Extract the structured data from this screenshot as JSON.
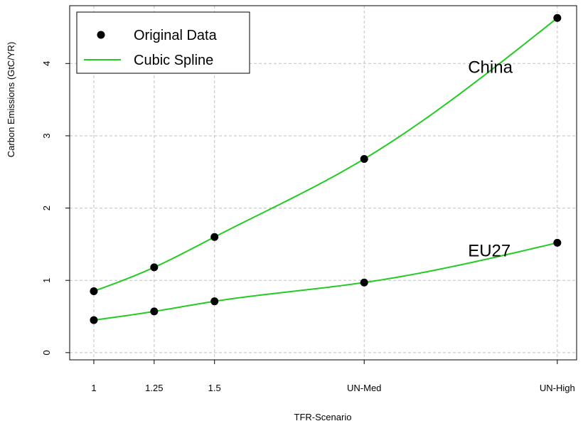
{
  "chart_data": {
    "type": "line",
    "xlabel": "TFR-Scenario",
    "ylabel": "Carbon Emissions (GtC/YR)",
    "x": [
      1,
      1.25,
      1.5,
      2.12,
      2.92
    ],
    "x_ticks": [
      {
        "value": 1,
        "label": "1"
      },
      {
        "value": 1.25,
        "label": "1.25"
      },
      {
        "value": 1.5,
        "label": "1.5"
      },
      {
        "value": 2.12,
        "label": "UN-Med"
      },
      {
        "value": 2.92,
        "label": "UN-High"
      }
    ],
    "y_ticks": [
      0,
      1,
      2,
      3,
      4
    ],
    "xlim": [
      0.9,
      3.0
    ],
    "ylim": [
      -0.1,
      4.8
    ],
    "grid": true,
    "legend_position": "top-left",
    "legend": {
      "points_label": "Original Data",
      "spline_label": "Cubic Spline",
      "spline_color": "#22cc22",
      "point_color": "#000000"
    },
    "series": [
      {
        "values": [
          0.85,
          1.18,
          1.6,
          2.68,
          4.63
        ],
        "annotation": "China"
      },
      {
        "values": [
          0.45,
          0.57,
          0.71,
          0.97,
          1.52
        ],
        "annotation": "EU27"
      }
    ],
    "annotations": [
      {
        "text": "China",
        "x": 2.55,
        "y": 3.87
      },
      {
        "text": "EU27",
        "x": 2.55,
        "y": 1.33
      }
    ]
  }
}
